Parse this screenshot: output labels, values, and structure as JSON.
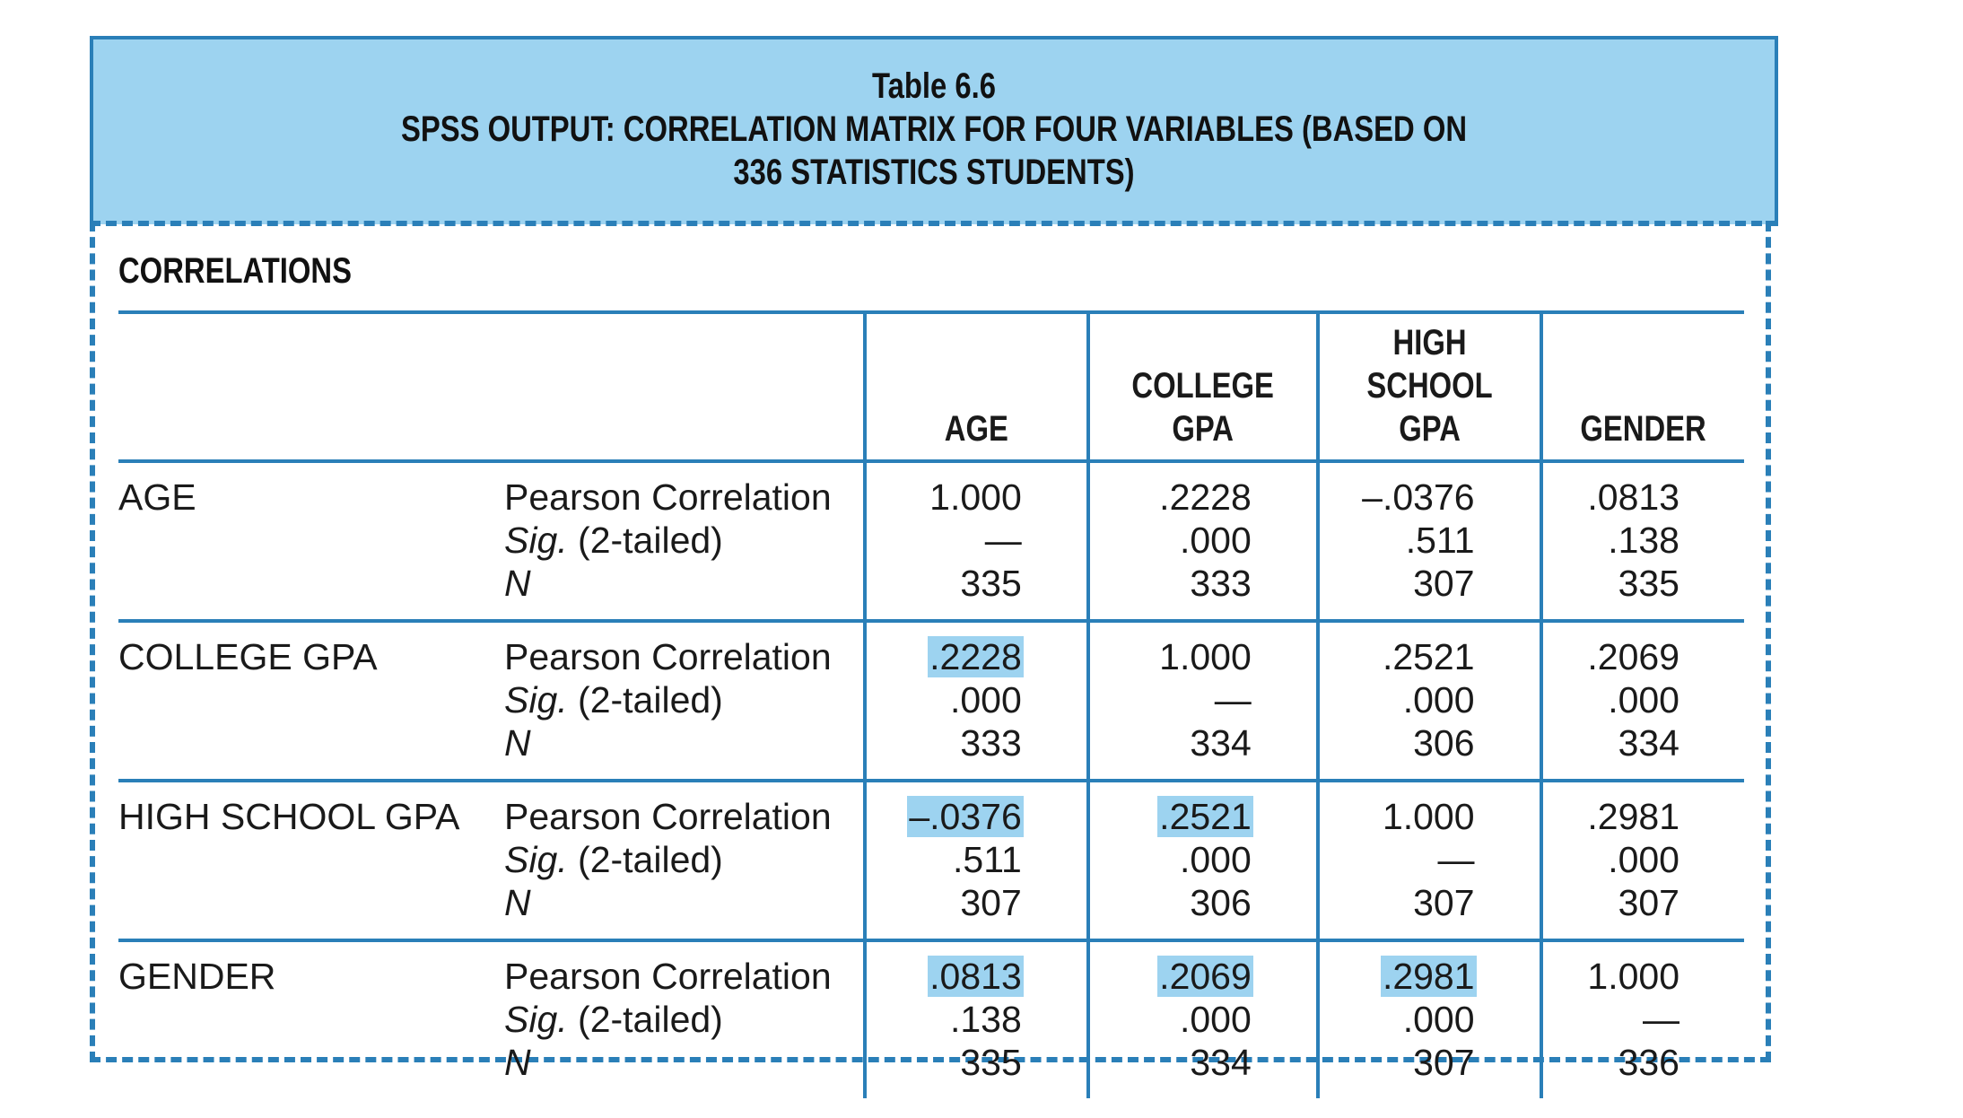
{
  "title": {
    "line1": "Table 6.6",
    "line2": "SPSS OUTPUT: CORRELATION MATRIX FOR FOUR VARIABLES (BASED ON",
    "line3": "336 STATISTICS STUDENTS)"
  },
  "section_label": "CORRELATIONS",
  "columns": [
    {
      "lines": [
        "AGE"
      ]
    },
    {
      "lines": [
        "COLLEGE",
        "GPA"
      ]
    },
    {
      "lines": [
        "HIGH",
        "SCHOOL",
        "GPA"
      ]
    },
    {
      "lines": [
        "GENDER"
      ]
    }
  ],
  "stat_labels": {
    "pearson": "Pearson Correlation",
    "sig_italic": "Sig.",
    "sig_rest": " (2-tailed)",
    "n": "N"
  },
  "rows": [
    {
      "name": "AGE",
      "cells": [
        {
          "r": "1.000",
          "sig": "—",
          "n": "335",
          "hl": false
        },
        {
          "r": ".2228",
          "sig": ".000",
          "n": "333",
          "hl": false
        },
        {
          "r": "–.0376",
          "sig": ".511",
          "n": "307",
          "hl": false
        },
        {
          "r": ".0813",
          "sig": ".138",
          "n": "335",
          "hl": false
        }
      ]
    },
    {
      "name": "COLLEGE GPA",
      "cells": [
        {
          "r": ".2228",
          "sig": ".000",
          "n": "333",
          "hl": true
        },
        {
          "r": "1.000",
          "sig": "—",
          "n": "334",
          "hl": false
        },
        {
          "r": ".2521",
          "sig": ".000",
          "n": "306",
          "hl": false
        },
        {
          "r": ".2069",
          "sig": ".000",
          "n": "334",
          "hl": false
        }
      ]
    },
    {
      "name": "HIGH SCHOOL GPA",
      "cells": [
        {
          "r": "–.0376",
          "sig": ".511",
          "n": "307",
          "hl": true
        },
        {
          "r": ".2521",
          "sig": ".000",
          "n": "306",
          "hl": true
        },
        {
          "r": "1.000",
          "sig": "—",
          "n": "307",
          "hl": false
        },
        {
          "r": ".2981",
          "sig": ".000",
          "n": "307",
          "hl": false
        }
      ]
    },
    {
      "name": "GENDER",
      "cells": [
        {
          "r": ".0813",
          "sig": ".138",
          "n": "335",
          "hl": true
        },
        {
          "r": ".2069",
          "sig": ".000",
          "n": "334",
          "hl": true
        },
        {
          "r": ".2981",
          "sig": ".000",
          "n": "307",
          "hl": true
        },
        {
          "r": "1.000",
          "sig": "—",
          "n": "336",
          "hl": false
        }
      ]
    }
  ],
  "colors": {
    "accent": "#2a7fb8",
    "title_bg": "#9dd3f0",
    "highlight": "#9dd3f0"
  }
}
